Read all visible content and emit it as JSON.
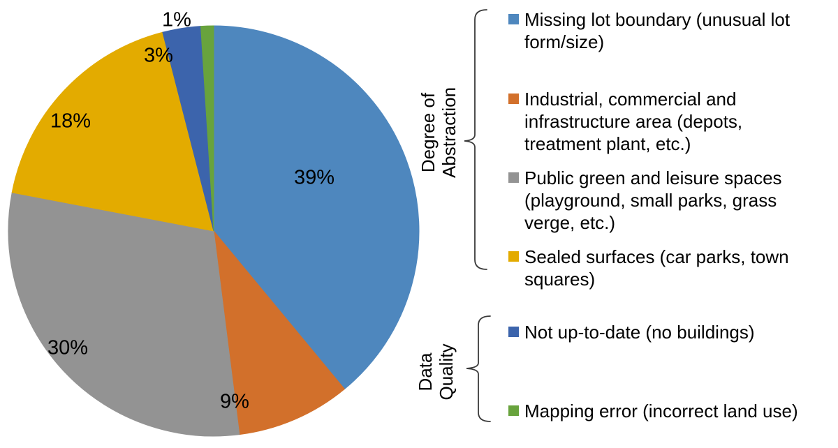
{
  "chart_data": {
    "type": "pie",
    "title": "",
    "unit": "%",
    "categories": [
      "Missing lot boundary (unusual lot form/size)",
      "Industrial, commercial and infrastructure area (depots, treatment plant, etc.)",
      "Public green and leisure spaces (playground, small parks, grass verge, etc.)",
      "Sealed surfaces (car parks, town squares)",
      "Not up-to-date (no buildings)",
      "Mapping error (incorrect land use)"
    ],
    "values": [
      39,
      9,
      30,
      18,
      3,
      1
    ],
    "labels": [
      "39%",
      "9%",
      "30%",
      "18%",
      "3%",
      "1%"
    ],
    "colors": [
      "#4E87BE",
      "#D2702B",
      "#939393",
      "#E3AB00",
      "#3C64AC",
      "#68A33D"
    ],
    "start_angle_deg": 0,
    "direction": "clockwise",
    "legend_position": "right",
    "groups": [
      {
        "label": "Degree of Abstraction",
        "item_indexes": [
          0,
          1,
          2,
          3
        ]
      },
      {
        "label": "Data Quality",
        "item_indexes": [
          4,
          5
        ]
      }
    ]
  },
  "legend": {
    "groups": [
      {
        "label": "Degree of\nAbstraction"
      },
      {
        "label": "Data\nQuality"
      }
    ],
    "items": [
      {
        "label": "Missing lot boundary (unusual lot\nform/size)"
      },
      {
        "label": "Industrial, commercial and\ninfrastructure area (depots,\ntreatment plant, etc.)"
      },
      {
        "label": "Public green and leisure spaces\n(playground, small parks, grass\nverge, etc.)"
      },
      {
        "label": "Sealed surfaces (car parks, town\nsquares)"
      },
      {
        "label": "Not up-to-date (no buildings)"
      },
      {
        "label": "Mapping error (incorrect land use)"
      }
    ]
  }
}
